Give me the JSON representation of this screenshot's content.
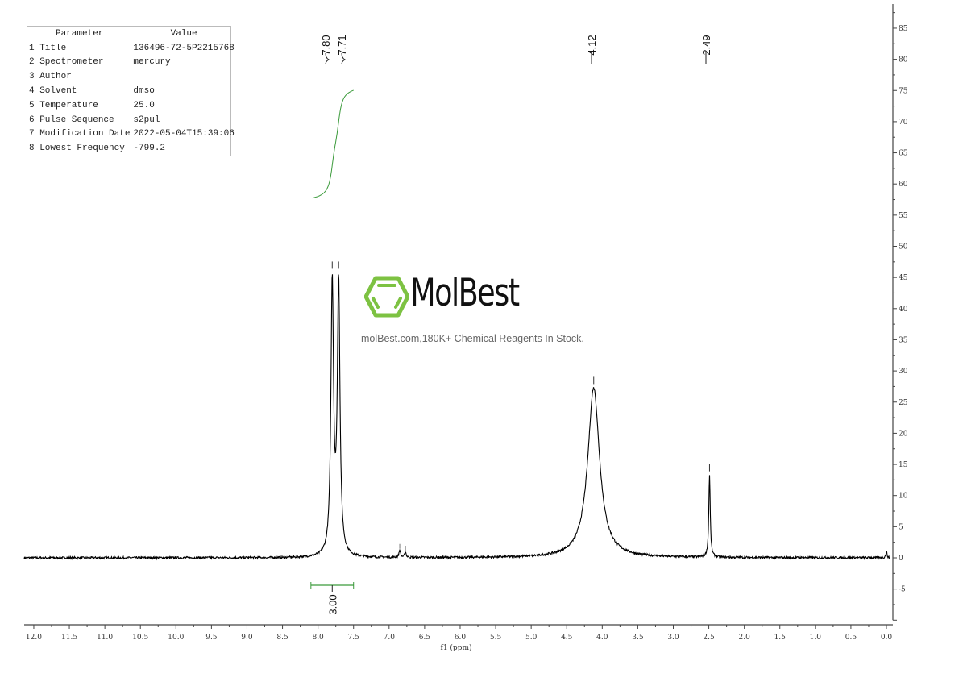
{
  "parameters": {
    "header": [
      "Parameter",
      "Value"
    ],
    "rows": [
      [
        "1 Title",
        "136496-72-5P2215768"
      ],
      [
        "2 Spectrometer",
        "mercury"
      ],
      [
        "3 Author",
        ""
      ],
      [
        "4 Solvent",
        "dmso"
      ],
      [
        "5 Temperature",
        "25.0"
      ],
      [
        "6 Pulse Sequence",
        "s2pul"
      ],
      [
        "7 Modification Date",
        "2022-05-04T15:39:06"
      ],
      [
        "8 Lowest Frequency",
        "-799.2"
      ]
    ]
  },
  "watermark": {
    "brand": "MolBest",
    "tagline": "molBest.com,180K+ Chemical Reagents In Stock.",
    "brand_color": "#7dc242"
  },
  "chart_data": {
    "type": "line",
    "xlabel": "f1 (ppm)",
    "xlim": [
      12.0,
      0.0
    ],
    "x_reversed": true,
    "x_ticks": [
      "12.0",
      "11.5",
      "11.0",
      "10.5",
      "10.0",
      "9.5",
      "9.0",
      "8.5",
      "8.0",
      "7.5",
      "7.0",
      "6.5",
      "6.0",
      "5.5",
      "5.0",
      "4.5",
      "4.0",
      "3.5",
      "3.0",
      "2.5",
      "2.0",
      "1.5",
      "1.0",
      "0.5",
      "0.0"
    ],
    "ylim": [
      -10,
      85
    ],
    "y_ticks": [
      "-5",
      "0",
      "5",
      "10",
      "15",
      "20",
      "25",
      "30",
      "35",
      "40",
      "45",
      "50",
      "55",
      "60",
      "65",
      "70",
      "75",
      "80",
      "85"
    ],
    "grid": false,
    "spectrum_color": "#000000",
    "integral_color": "#3a9a3a",
    "peaks": [
      {
        "ppm": 7.8,
        "label": "7.80",
        "height": 46
      },
      {
        "ppm": 7.71,
        "label": "7.71",
        "height": 46
      },
      {
        "ppm": 4.12,
        "label": "4.12",
        "height": 27.5
      },
      {
        "ppm": 2.49,
        "label": "2.49",
        "height": 13.5
      },
      {
        "ppm": 6.85,
        "height": 1.2
      },
      {
        "ppm": 6.77,
        "height": 0.9
      }
    ],
    "integrals": [
      {
        "from": 8.1,
        "to": 7.5,
        "center": 7.8,
        "value": "3.00",
        "curve_start": 57,
        "curve_end": 76
      }
    ]
  }
}
